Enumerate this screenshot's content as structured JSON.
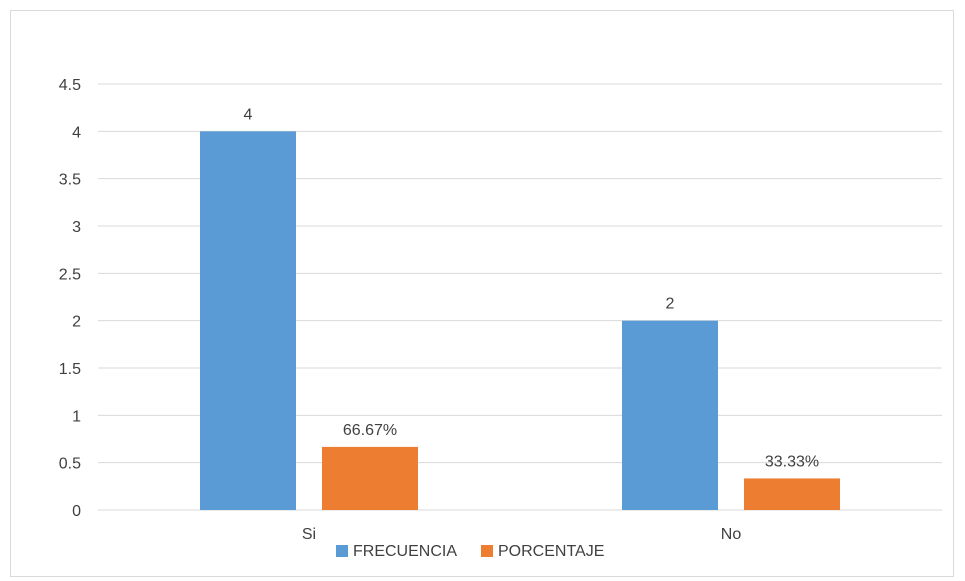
{
  "chart_data": {
    "type": "bar",
    "title": "",
    "xlabel": "",
    "ylabel": "",
    "categories": [
      "Si",
      "No"
    ],
    "series": [
      {
        "name": "FRECUENCIA",
        "values": [
          4,
          2
        ],
        "labels": [
          "4",
          "2"
        ],
        "color": "#5b9bd5"
      },
      {
        "name": "PORCENTAJE",
        "values": [
          0.6667,
          0.3333
        ],
        "labels": [
          "66.67%",
          "33.33%"
        ],
        "color": "#ed7d31"
      }
    ],
    "ylim": [
      0,
      4.5
    ],
    "yticks": [
      "0",
      "0.5",
      "1",
      "1.5",
      "2",
      "2.5",
      "3",
      "3.5",
      "4",
      "4.5"
    ],
    "grid": true,
    "legend_position": "bottom"
  }
}
